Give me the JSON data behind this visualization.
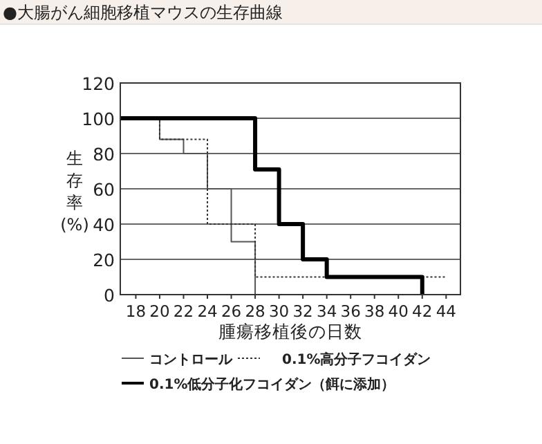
{
  "chart_data": {
    "type": "step",
    "title": "●大腸がん細胞移植マウスの生存曲線",
    "xlabel": "腫瘍移植後の日数",
    "ylabel": "生存率\n(%)",
    "xlim": [
      16.7,
      45.2
    ],
    "xticks": [
      18,
      20,
      22,
      24,
      26,
      28,
      30,
      32,
      34,
      36,
      38,
      40,
      42,
      44
    ],
    "ylim": [
      0,
      120
    ],
    "yticks": [
      0,
      20,
      40,
      60,
      80,
      100,
      120
    ],
    "grid": "y",
    "legend": "bottom",
    "series": [
      {
        "name": "コントロール",
        "color": "#555555",
        "line_style": "solid",
        "x": [
          16.7,
          20,
          22,
          24,
          26,
          28
        ],
        "values": [
          100,
          88,
          80,
          60,
          30,
          0
        ]
      },
      {
        "name": "0.1%高分子フコイダン",
        "color": "#333333",
        "line_style": "dotted",
        "x": [
          16.7,
          20,
          24,
          28,
          44
        ],
        "values": [
          100,
          88,
          40,
          10,
          10
        ]
      },
      {
        "name": "0.1%低分子化フコイダン（餌に添加）",
        "color": "#000000",
        "line_style": "solid",
        "x": [
          16.7,
          28,
          30,
          32,
          34,
          42
        ],
        "values": [
          100,
          71,
          40,
          20,
          10,
          0
        ]
      }
    ]
  }
}
